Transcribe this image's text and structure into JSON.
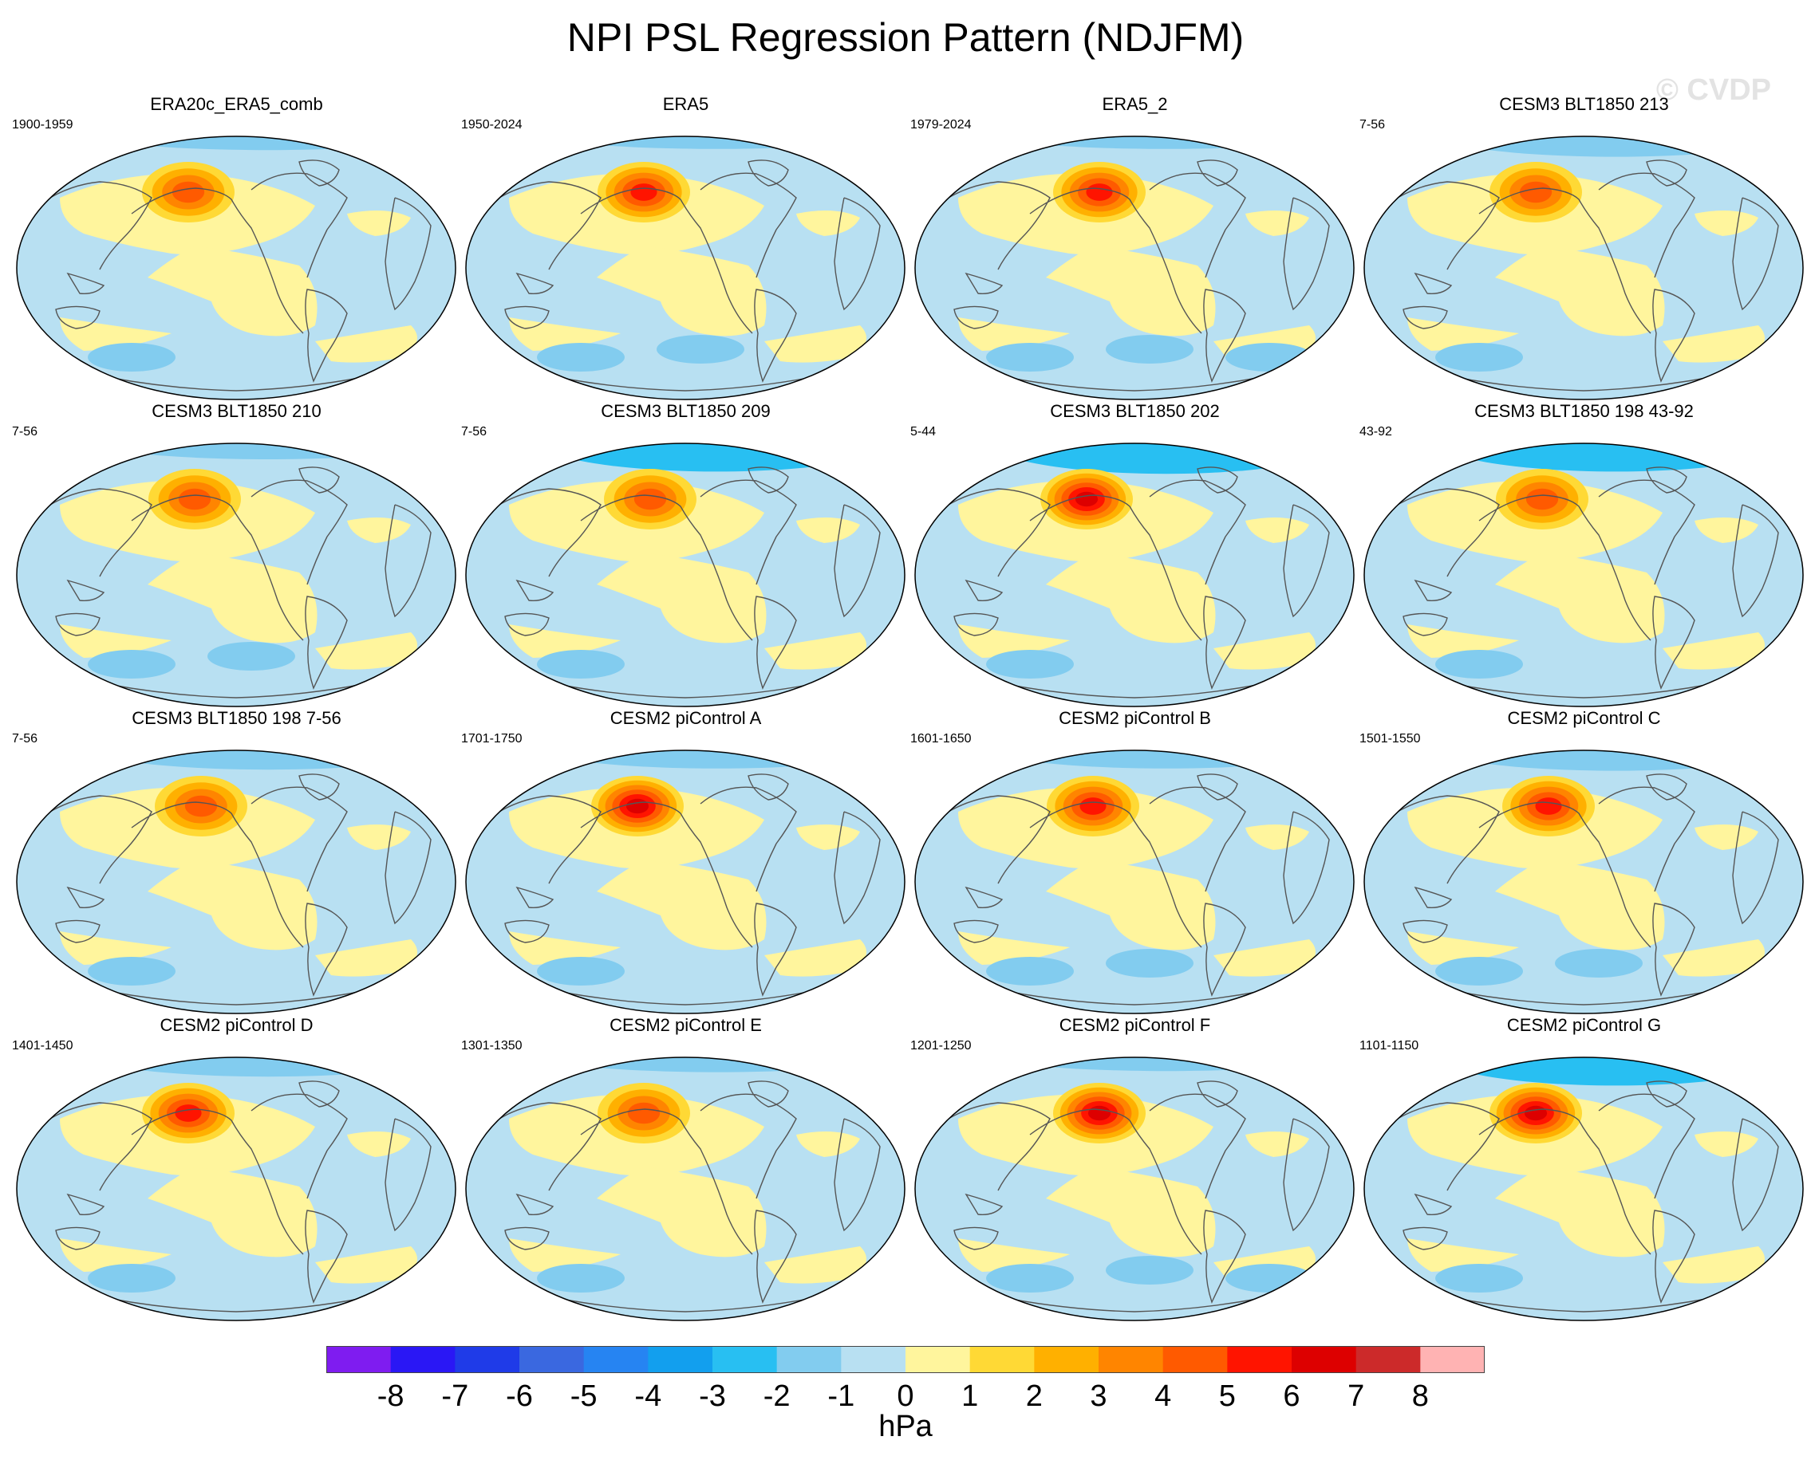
{
  "title": "NPI PSL Regression Pattern (NDJFM)",
  "watermark": "© CVDP",
  "units": "hPa",
  "colorbar": {
    "labels": [
      "-8",
      "-7",
      "-6",
      "-5",
      "-4",
      "-3",
      "-2",
      "-1",
      "0",
      "1",
      "2",
      "3",
      "4",
      "5",
      "6",
      "7",
      "8"
    ],
    "colors": [
      "#7f1cf0",
      "#2a17f5",
      "#1f3be8",
      "#3a68e0",
      "#2684f2",
      "#129fee",
      "#28bff2",
      "#82ccef",
      "#b8e0f2",
      "#fff59d",
      "#ffd935",
      "#ffb000",
      "#ff8500",
      "#ff5a00",
      "#ff1400",
      "#dd0000",
      "#cc2a2a",
      "#ffb3b3"
    ]
  },
  "colors": {
    "ocean": "#b8e0f2",
    "positive_weak": "#fff59d",
    "negative_moderate": "#82ccef",
    "coast": "#555555"
  },
  "panels": [
    {
      "title": "ERA20c_ERA5_comb",
      "period": "1900-1959",
      "peak": 4.0,
      "arctic": 0.3,
      "south": 1
    },
    {
      "title": "ERA5",
      "period": "1950-2024",
      "peak": 4.6,
      "arctic": 0.2,
      "south": 2
    },
    {
      "title": "ERA5_2",
      "period": "1979-2024",
      "peak": 4.8,
      "arctic": 0.2,
      "south": 3
    },
    {
      "title": "CESM3 BLT1850 213",
      "period": "7-56",
      "peak": 3.6,
      "arctic": 0.9,
      "south": 1
    },
    {
      "title": "CESM3 BLT1850 210",
      "period": "7-56",
      "peak": 4.0,
      "arctic": 0.5,
      "south": 2
    },
    {
      "title": "CESM3 BLT1850 209",
      "period": "7-56",
      "peak": 3.4,
      "arctic": 1.6,
      "south": 1
    },
    {
      "title": "CESM3 BLT1850 202",
      "period": "5-44",
      "peak": 5.8,
      "arctic": 1.8,
      "south": 1
    },
    {
      "title": "CESM3 BLT1850 198 43-92",
      "period": "43-92",
      "peak": 3.8,
      "arctic": 1.6,
      "south": 1
    },
    {
      "title": "CESM3 BLT1850 198 7-56",
      "period": "7-56",
      "peak": 3.8,
      "arctic": 0.8,
      "south": 1
    },
    {
      "title": "CESM2 piControl A",
      "period": "1701-1750",
      "peak": 5.6,
      "arctic": 0.7,
      "south": 1
    },
    {
      "title": "CESM2 piControl B",
      "period": "1601-1650",
      "peak": 4.8,
      "arctic": 0.7,
      "south": 2
    },
    {
      "title": "CESM2 piControl C",
      "period": "1501-1550",
      "peak": 4.6,
      "arctic": 0.9,
      "south": 2
    },
    {
      "title": "CESM2 piControl D",
      "period": "1401-1450",
      "peak": 4.8,
      "arctic": 0.8,
      "south": 1
    },
    {
      "title": "CESM2 piControl E",
      "period": "1301-1350",
      "peak": 3.4,
      "arctic": 0.4,
      "south": 1
    },
    {
      "title": "CESM2 piControl F",
      "period": "1201-1250",
      "peak": 5.2,
      "arctic": 0.3,
      "south": 3
    },
    {
      "title": "CESM2 piControl G",
      "period": "1101-1150",
      "peak": 5.4,
      "arctic": 1.6,
      "south": 1
    }
  ]
}
